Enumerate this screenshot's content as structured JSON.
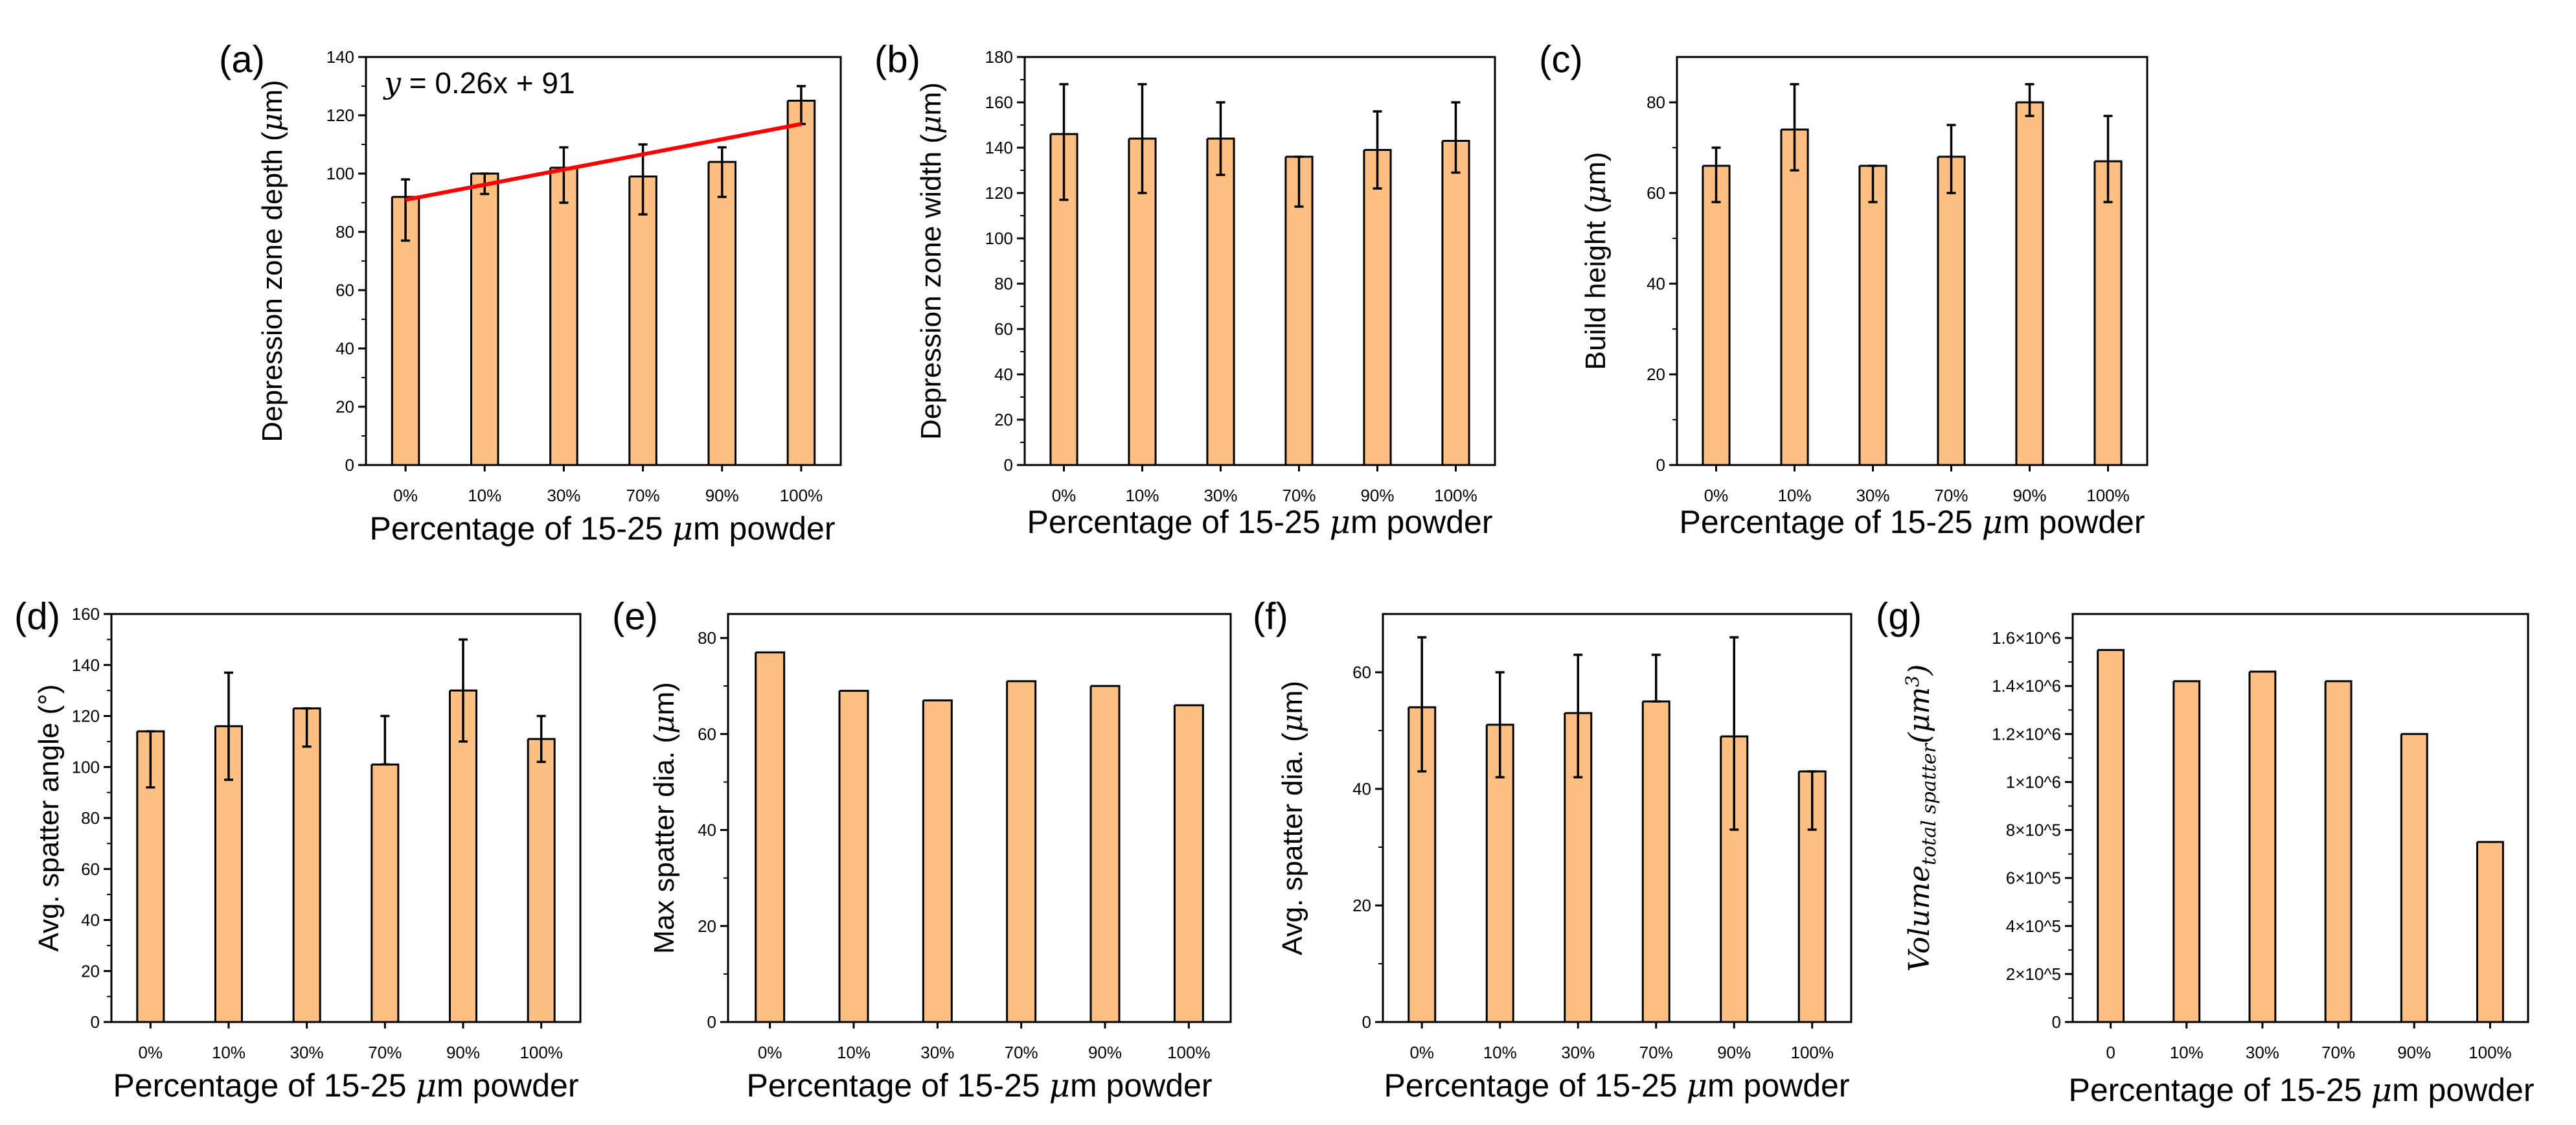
{
  "colors": {
    "bar": "#FDBF82",
    "fit_line": "#FF0000",
    "axis": "#000000"
  },
  "chart_data": [
    {
      "panel": "(a)",
      "type": "bar",
      "categories": [
        "0%",
        "10%",
        "30%",
        "70%",
        "90%",
        "100%"
      ],
      "values": [
        92,
        100,
        102,
        99,
        104,
        125
      ],
      "err_up": [
        98,
        100,
        109,
        110,
        109,
        130
      ],
      "err_down": [
        77,
        93,
        90,
        86,
        92,
        117
      ],
      "ylabel_pre": "Depression zone depth (",
      "ylabel_mu": "μ",
      "ylabel_post": "m)",
      "xlabel_pre": "Percentage of 15-25 ",
      "xlabel_mu": "μ",
      "xlabel_post": "m powder",
      "ylim": [
        0,
        140
      ],
      "yticks": [
        0,
        20,
        40,
        60,
        80,
        100,
        120,
        140
      ],
      "fit": {
        "slope": 0.26,
        "intercept": 91,
        "eq_lhs": "y",
        "eq_rhs": " = 0.26x + 91"
      }
    },
    {
      "panel": "(b)",
      "type": "bar",
      "categories": [
        "0%",
        "10%",
        "30%",
        "70%",
        "90%",
        "100%"
      ],
      "values": [
        146,
        144,
        144,
        136,
        139,
        143
      ],
      "err_up": [
        168,
        168,
        160,
        136,
        156,
        160
      ],
      "err_down": [
        117,
        120,
        128,
        114,
        122,
        129
      ],
      "ylabel_pre": "Depression zone width (",
      "ylabel_mu": "μ",
      "ylabel_post": "m)",
      "xlabel_pre": "Percentage of 15-25 ",
      "xlabel_mu": "μ",
      "xlabel_post": "m powder",
      "ylim": [
        0,
        180
      ],
      "yticks": [
        0,
        20,
        40,
        60,
        80,
        100,
        120,
        140,
        160,
        180
      ]
    },
    {
      "panel": "(c)",
      "type": "bar",
      "categories": [
        "0%",
        "10%",
        "30%",
        "70%",
        "90%",
        "100%"
      ],
      "values": [
        66,
        74,
        66,
        68,
        80,
        67
      ],
      "err_up": [
        70,
        84,
        66,
        75,
        84,
        77
      ],
      "err_down": [
        58,
        65,
        58,
        60,
        77,
        58
      ],
      "ylabel_pre": "Build height (",
      "ylabel_mu": "μ",
      "ylabel_post": "m)",
      "xlabel_pre": "Percentage of 15-25 ",
      "xlabel_mu": "μ",
      "xlabel_post": "m powder",
      "ylim": [
        0,
        90
      ],
      "yticks": [
        0,
        20,
        40,
        60,
        80
      ]
    },
    {
      "panel": "(d)",
      "type": "bar",
      "categories": [
        "0%",
        "10%",
        "30%",
        "70%",
        "90%",
        "100%"
      ],
      "values": [
        114,
        116,
        123,
        101,
        130,
        111
      ],
      "err_up": [
        114,
        137,
        123,
        120,
        150,
        120
      ],
      "err_down": [
        92,
        95,
        108,
        101,
        110,
        102
      ],
      "ylabel_pre": "Avg. spatter angle (°)",
      "ylabel_mu": "",
      "ylabel_post": "",
      "xlabel_pre": "Percentage of 15-25 ",
      "xlabel_mu": "μ",
      "xlabel_post": "m powder",
      "ylim": [
        0,
        160
      ],
      "yticks": [
        0,
        20,
        40,
        60,
        80,
        100,
        120,
        140,
        160
      ]
    },
    {
      "panel": "(e)",
      "type": "bar",
      "categories": [
        "0%",
        "10%",
        "30%",
        "70%",
        "90%",
        "100%"
      ],
      "values": [
        77,
        69,
        67,
        71,
        70,
        66
      ],
      "ylabel_pre": "Max spatter dia. (",
      "ylabel_mu": "μ",
      "ylabel_post": "m)",
      "xlabel_pre": "Percentage of 15-25 ",
      "xlabel_mu": "μ",
      "xlabel_post": "m powder",
      "ylim": [
        0,
        85
      ],
      "yticks": [
        0,
        20,
        40,
        60,
        80
      ]
    },
    {
      "panel": "(f)",
      "type": "bar",
      "categories": [
        "0%",
        "10%",
        "30%",
        "70%",
        "90%",
        "100%"
      ],
      "values": [
        54,
        51,
        53,
        55,
        49,
        43
      ],
      "err_up": [
        66,
        60,
        63,
        63,
        66,
        43
      ],
      "err_down": [
        43,
        42,
        42,
        55,
        33,
        33
      ],
      "ylabel_pre": "Avg. spatter dia. (",
      "ylabel_mu": "μ",
      "ylabel_post": "m)",
      "xlabel_pre": "Percentage of 15-25 ",
      "xlabel_mu": "μ",
      "xlabel_post": "m powder",
      "ylim": [
        0,
        70
      ],
      "yticks": [
        0,
        20,
        40,
        60
      ]
    },
    {
      "panel": "(g)",
      "type": "bar",
      "categories": [
        "0",
        "10%",
        "30%",
        "70%",
        "90%",
        "100%"
      ],
      "values": [
        1550000,
        1420000,
        1460000,
        1420000,
        1200000,
        750000
      ],
      "ylabel_pre": "Volume",
      "ylabel_mu": "",
      "ylabel_post": "",
      "ylabel_sub": "total spatter",
      "ylabel_unit": "(μm",
      "ylabel_unit_sup": "3",
      "ylabel_unit_close": ")",
      "xlabel_pre": "Percentage of 15-25 ",
      "xlabel_mu": "μ",
      "xlabel_post": "m powder",
      "ylim": [
        0,
        1700000
      ],
      "yticks": [
        0,
        200000,
        400000,
        600000,
        800000,
        1000000,
        1200000,
        1400000,
        1600000
      ],
      "ytick_labels": [
        "0",
        "2×10^5",
        "4×10^5",
        "6×10^5",
        "8×10^5",
        "1×10^6",
        "1.2×10^6",
        "1.4×10^6",
        "1.6×10^6"
      ]
    }
  ]
}
